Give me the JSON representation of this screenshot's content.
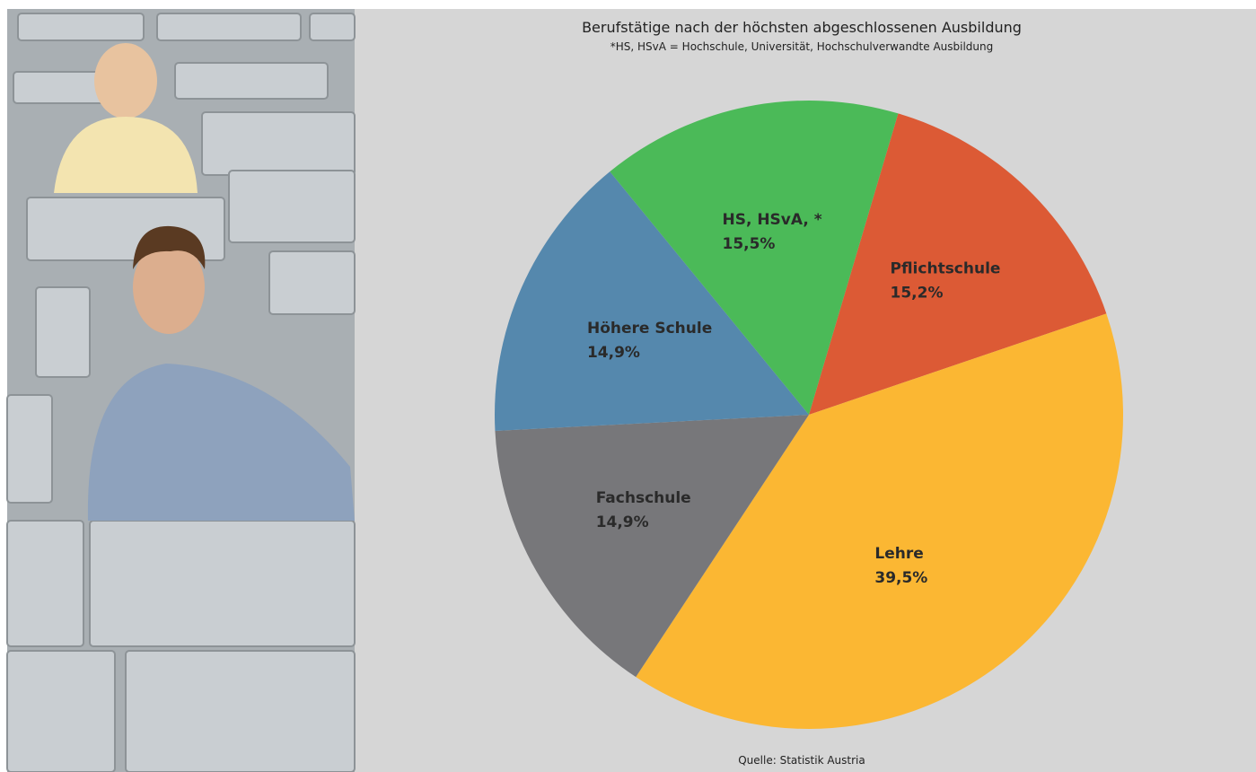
{
  "chart_data": {
    "type": "pie",
    "title": "Berufstätige nach der höchsten abgeschlossenen Ausbildung",
    "subtitle": "*HS, HSvA = Hochschule, Universität, Hochschulverwandte Ausbildung",
    "source": "Quelle: Statistik Austria",
    "categories": [
      "Pflichtschule",
      "Lehre",
      "Fachschule",
      "Höhere Schule",
      "HS, HSvA, *"
    ],
    "values": [
      15.2,
      39.5,
      14.9,
      14.9,
      15.5
    ],
    "value_labels": [
      "15,2%",
      "39,5%",
      "14,9%",
      "14,9%",
      "15,5%"
    ],
    "colors": [
      "#dc5a35",
      "#fbb733",
      "#77777a",
      "#5588ad",
      "#4bba58"
    ]
  }
}
